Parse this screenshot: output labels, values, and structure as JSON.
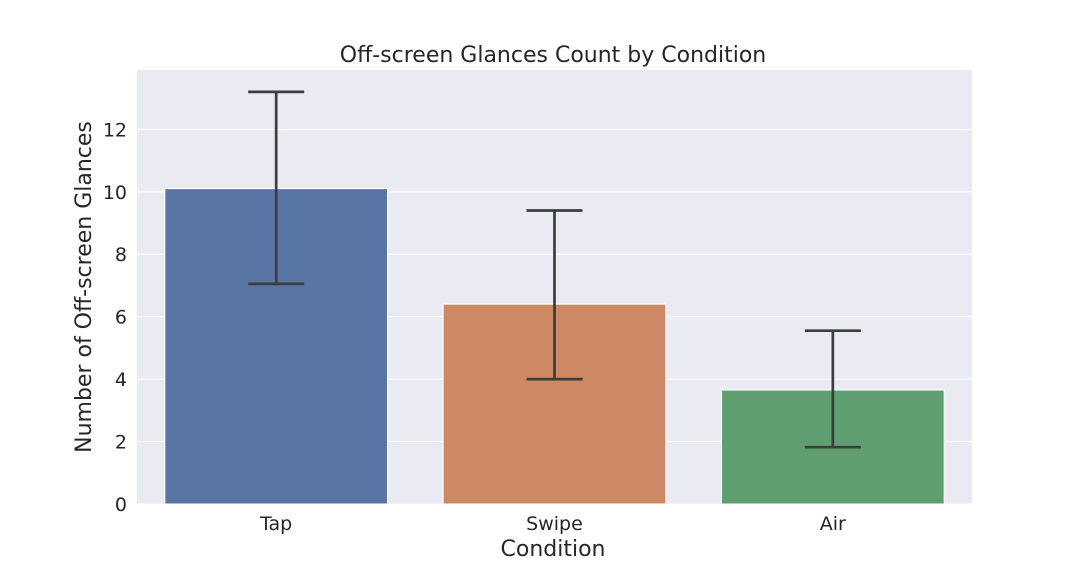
{
  "chart_data": {
    "type": "bar",
    "title": "Off-screen Glances Count by Condition",
    "xlabel": "Condition",
    "ylabel": "Number of Off-screen Glances",
    "categories": [
      "Tap",
      "Swipe",
      "Air"
    ],
    "values": [
      10.1,
      6.4,
      3.65
    ],
    "error_low": [
      7.05,
      4.0,
      1.82
    ],
    "error_high": [
      13.2,
      9.4,
      5.55
    ],
    "colors": [
      "#5875a4",
      "#cc8963",
      "#5f9e6e"
    ],
    "ylim": [
      0,
      13.9
    ],
    "yticks": [
      0,
      2,
      4,
      6,
      8,
      10,
      12
    ],
    "grid": true,
    "background": "#eaeaf2",
    "error_color": "#3d3d3d"
  }
}
